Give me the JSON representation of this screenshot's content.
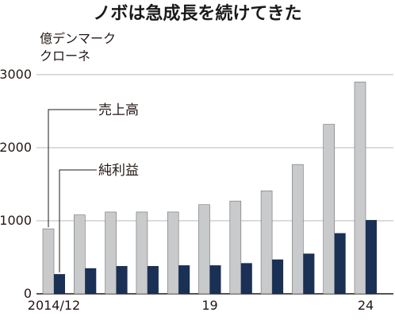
{
  "chart_data": {
    "type": "bar",
    "title": "ノボは急成長を続けてきた",
    "unit_label": [
      "億デンマーク",
      "クローネ"
    ],
    "ylim": [
      0,
      3000
    ],
    "yticks": [
      "0",
      "1000",
      "2000",
      "3000"
    ],
    "grid": true,
    "x_tick_labels": [
      {
        "index": 0,
        "label": "2014/12"
      },
      {
        "index": 5,
        "label": "19"
      },
      {
        "index": 10,
        "label": "24"
      }
    ],
    "series": [
      {
        "name": "売上高",
        "color": "#c8cacc",
        "values": [
          890,
          1080,
          1120,
          1120,
          1120,
          1220,
          1270,
          1410,
          1770,
          2320,
          2900
        ]
      },
      {
        "name": "純利益",
        "color": "#1a3055",
        "values": [
          270,
          350,
          380,
          380,
          390,
          390,
          420,
          470,
          550,
          830,
          1010
        ]
      }
    ]
  }
}
